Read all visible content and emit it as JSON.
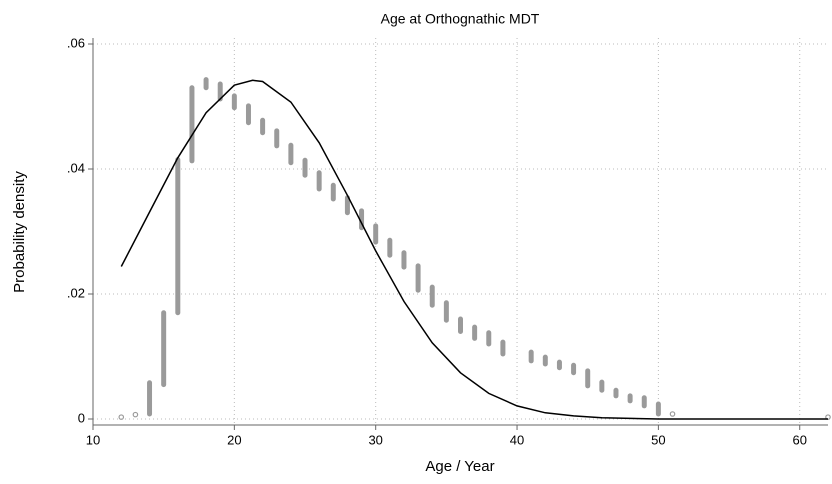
{
  "chart_data": {
    "type": "range_density",
    "title": "Age at Orthognathic MDT",
    "x_label": "Age / Year",
    "y_label": "Probability density",
    "xlim": [
      10,
      62
    ],
    "ylim": [
      0,
      0.06
    ],
    "xticks": [
      10,
      20,
      30,
      40,
      50,
      60
    ],
    "yticks": [
      0,
      {
        "value": 0.02,
        "label": ".02"
      },
      {
        "value": 0.04,
        "label": ".04"
      },
      {
        "value": 0.06,
        "label": ".06"
      }
    ],
    "grid": true,
    "density": {
      "color": "#9a9a9a",
      "x": [
        12,
        13,
        14,
        15,
        16,
        17,
        18,
        19,
        20,
        21,
        22,
        23,
        24,
        25,
        26,
        27,
        28,
        29,
        30,
        31,
        32,
        33,
        34,
        35,
        36,
        37,
        38,
        39,
        41,
        42,
        43,
        44,
        45,
        46,
        47,
        48,
        49,
        50,
        51,
        62
      ],
      "low": [
        0.0003,
        0.0007,
        0.0008,
        0.0055,
        0.017,
        0.0413,
        0.053,
        0.0512,
        0.0498,
        0.0474,
        0.0458,
        0.0437,
        0.041,
        0.039,
        0.0368,
        0.0352,
        0.033,
        0.0306,
        0.0283,
        0.0262,
        0.0243,
        0.0206,
        0.0182,
        0.0158,
        0.014,
        0.0129,
        0.012,
        0.0104,
        0.0093,
        0.0088,
        0.0082,
        0.0074,
        0.0053,
        0.0046,
        0.0037,
        0.0029,
        0.0021,
        0.0008,
        0.0008,
        0.0003
      ],
      "high": [
        0.0003,
        0.0007,
        0.0058,
        0.017,
        0.0415,
        0.053,
        0.0543,
        0.0536,
        0.0517,
        0.0501,
        0.0478,
        0.0461,
        0.0438,
        0.0414,
        0.0394,
        0.0374,
        0.0354,
        0.0333,
        0.0309,
        0.0286,
        0.0266,
        0.0245,
        0.0211,
        0.0186,
        0.016,
        0.0147,
        0.0138,
        0.0123,
        0.0107,
        0.0099,
        0.0091,
        0.0086,
        0.0077,
        0.0059,
        0.0046,
        0.0037,
        0.0034,
        0.0024,
        0.0008,
        0.0003
      ]
    },
    "curve": {
      "color": "#000000",
      "x": [
        12,
        14,
        16,
        18,
        20,
        21.3,
        22,
        24,
        26,
        28,
        30,
        32,
        34,
        36,
        38,
        40,
        42,
        44,
        46,
        48,
        50,
        54,
        58,
        62
      ],
      "y": [
        0.0244,
        0.0331,
        0.0418,
        0.049,
        0.0534,
        0.0542,
        0.054,
        0.0507,
        0.0442,
        0.0358,
        0.0269,
        0.0188,
        0.0122,
        0.0074,
        0.0041,
        0.0021,
        0.001,
        0.0005,
        0.0002,
        0.0001,
        0,
        0,
        0,
        0
      ]
    }
  }
}
